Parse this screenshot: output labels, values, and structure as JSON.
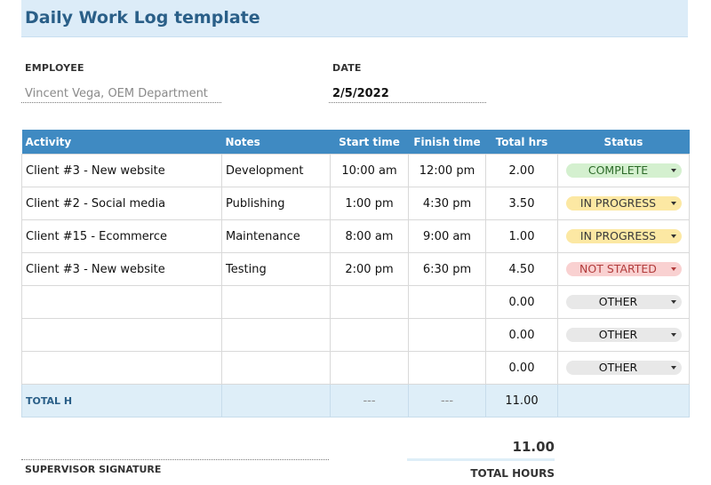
{
  "title": "Daily Work Log template",
  "employee": {
    "label": "EMPLOYEE",
    "value": "Vincent Vega, OEM Department"
  },
  "date": {
    "label": "DATE",
    "value": "2/5/2022"
  },
  "table": {
    "headers": [
      "Activity",
      "Notes",
      "Start time",
      "Finish time",
      "Total hrs",
      "Status"
    ],
    "rows": [
      {
        "activity": "Client #3 - New website",
        "notes": "Development",
        "start": "10:00 am",
        "finish": "12:00 pm",
        "hours": "2.00",
        "status": "COMPLETE",
        "status_type": "complete"
      },
      {
        "activity": "Client #2 - Social media",
        "notes": "Publishing",
        "start": "1:00 pm",
        "finish": "4:30 pm",
        "hours": "3.50",
        "status": "IN PROGRESS",
        "status_type": "progress"
      },
      {
        "activity": "Client #15 - Ecommerce",
        "notes": "Maintenance",
        "start": "8:00 am",
        "finish": "9:00 am",
        "hours": "1.00",
        "status": "IN PROGRESS",
        "status_type": "progress"
      },
      {
        "activity": "Client #3 - New website",
        "notes": "Testing",
        "start": "2:00 pm",
        "finish": "6:30 pm",
        "hours": "4.50",
        "status": "NOT STARTED",
        "status_type": "notstarted"
      },
      {
        "activity": "",
        "notes": "",
        "start": "",
        "finish": "",
        "hours": "0.00",
        "status": "OTHER",
        "status_type": "other"
      },
      {
        "activity": "",
        "notes": "",
        "start": "",
        "finish": "",
        "hours": "0.00",
        "status": "OTHER",
        "status_type": "other"
      },
      {
        "activity": "",
        "notes": "",
        "start": "",
        "finish": "",
        "hours": "0.00",
        "status": "OTHER",
        "status_type": "other"
      }
    ],
    "total": {
      "label": "TOTAL H",
      "start": "---",
      "finish": "---",
      "hours": "11.00"
    }
  },
  "footer": {
    "signature_label": "SUPERVISOR SIGNATURE",
    "total_hours_value": "11.00",
    "total_hours_label": "TOTAL HOURS"
  },
  "colors": {
    "header_bg": "#3f8ac2",
    "title_bg": "#dcecf8",
    "complete": "#d4f0cf",
    "in_progress": "#fce8a3",
    "not_started": "#f9d1d1",
    "other": "#e8e8e8"
  }
}
